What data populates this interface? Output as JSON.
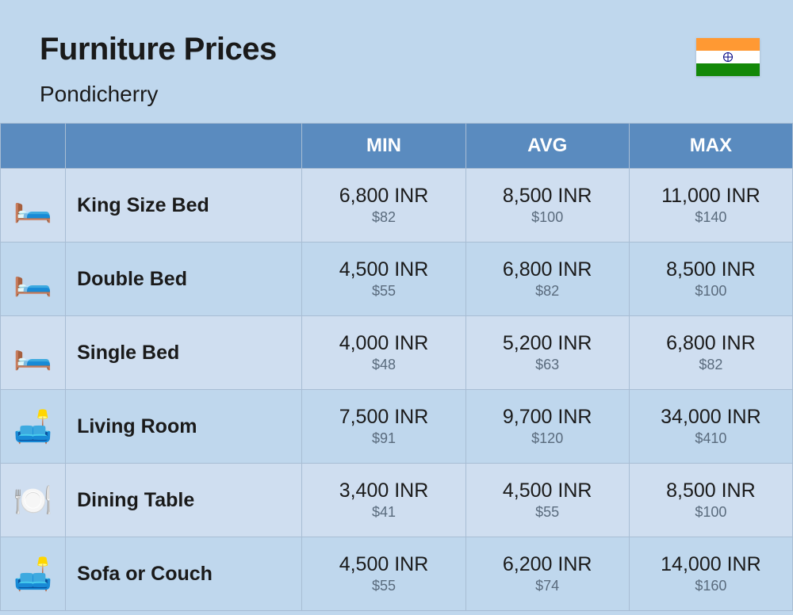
{
  "header": {
    "title": "Furniture Prices",
    "subtitle": "Pondicherry"
  },
  "flag": {
    "top_color": "#ff9933",
    "mid_color": "#ffffff",
    "bot_color": "#138808",
    "chakra_color": "#000080"
  },
  "table": {
    "columns": [
      "MIN",
      "AVG",
      "MAX"
    ],
    "header_bg": "#5a8bbf",
    "header_fg": "#ffffff",
    "row_alt_bg": "#cfdef0",
    "border_color": "#a8bdd4",
    "rows": [
      {
        "icon": "🛏️",
        "name": "King Size Bed",
        "min_inr": "6,800 INR",
        "min_usd": "$82",
        "avg_inr": "8,500 INR",
        "avg_usd": "$100",
        "max_inr": "11,000 INR",
        "max_usd": "$140"
      },
      {
        "icon": "🛏️",
        "name": "Double Bed",
        "min_inr": "4,500 INR",
        "min_usd": "$55",
        "avg_inr": "6,800 INR",
        "avg_usd": "$82",
        "max_inr": "8,500 INR",
        "max_usd": "$100"
      },
      {
        "icon": "🛏️",
        "name": "Single Bed",
        "min_inr": "4,000 INR",
        "min_usd": "$48",
        "avg_inr": "5,200 INR",
        "avg_usd": "$63",
        "max_inr": "6,800 INR",
        "max_usd": "$82"
      },
      {
        "icon": "🛋️",
        "name": "Living Room",
        "min_inr": "7,500 INR",
        "min_usd": "$91",
        "avg_inr": "9,700 INR",
        "avg_usd": "$120",
        "max_inr": "34,000 INR",
        "max_usd": "$410"
      },
      {
        "icon": "🍽️",
        "name": "Dining Table",
        "min_inr": "3,400 INR",
        "min_usd": "$41",
        "avg_inr": "4,500 INR",
        "avg_usd": "$55",
        "max_inr": "8,500 INR",
        "max_usd": "$100"
      },
      {
        "icon": "🛋️",
        "name": "Sofa or Couch",
        "min_inr": "4,500 INR",
        "min_usd": "$55",
        "avg_inr": "6,200 INR",
        "avg_usd": "$74",
        "max_inr": "14,000 INR",
        "max_usd": "$160"
      }
    ]
  }
}
